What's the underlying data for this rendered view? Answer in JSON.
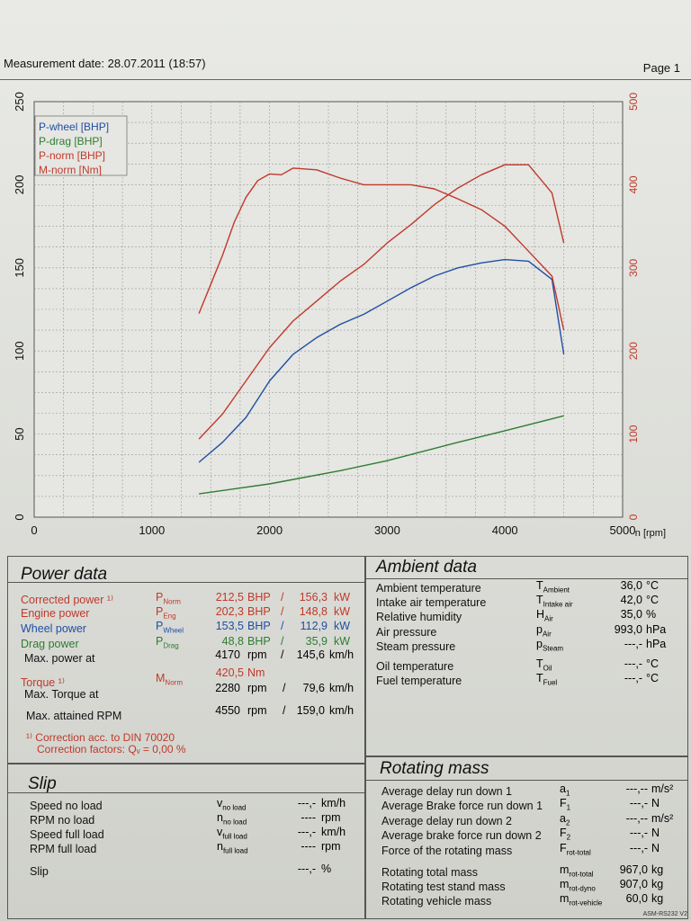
{
  "header": {
    "date": "Measurement date: 28.07.2011 (18:57)",
    "page": "Page 1"
  },
  "chart_data": {
    "type": "line",
    "xlabel": "n [rpm]",
    "xlim": [
      0,
      5000
    ],
    "x_ticks": [
      "0",
      "1000",
      "2000",
      "3000",
      "4000",
      "5000"
    ],
    "ylim_left": [
      0,
      250
    ],
    "y_left_ticks": [
      "0",
      "50",
      "100",
      "150",
      "200",
      "250"
    ],
    "ylim_right": [
      0,
      500
    ],
    "y_right_ticks": [
      "0",
      "100",
      "200",
      "300",
      "400",
      "500"
    ],
    "grid": true,
    "legend_position": "top-left",
    "series": [
      {
        "name": "P-wheel [BHP]",
        "color": "#1f4fa3",
        "axis": "left",
        "x": [
          1400,
          1600,
          1800,
          2000,
          2200,
          2400,
          2600,
          2800,
          3000,
          3200,
          3400,
          3600,
          3800,
          4000,
          4200,
          4400,
          4500
        ],
        "y": [
          33,
          45,
          60,
          82,
          98,
          108,
          116,
          122,
          130,
          138,
          145,
          150,
          153,
          155,
          154,
          143,
          98
        ]
      },
      {
        "name": "P-drag [BHP]",
        "color": "#2e7d32",
        "axis": "left",
        "x": [
          1400,
          2000,
          2600,
          3000,
          3600,
          4000,
          4500
        ],
        "y": [
          14,
          20,
          28,
          34,
          45,
          52,
          61
        ]
      },
      {
        "name": "P-norm [BHP]",
        "color": "#c0392b",
        "axis": "left",
        "x": [
          1400,
          1600,
          1800,
          2000,
          2200,
          2400,
          2600,
          2800,
          3000,
          3200,
          3400,
          3600,
          3800,
          4000,
          4200,
          4400,
          4500
        ],
        "y": [
          47,
          62,
          82,
          102,
          118,
          130,
          142,
          152,
          165,
          176,
          188,
          198,
          206,
          212,
          212,
          195,
          165
        ]
      },
      {
        "name": "M-norm [Nm]",
        "color": "#c0392b",
        "axis": "right",
        "x": [
          1400,
          1500,
          1600,
          1700,
          1800,
          1900,
          2000,
          2100,
          2200,
          2400,
          2600,
          2800,
          3000,
          3200,
          3400,
          3600,
          3800,
          4000,
          4200,
          4400,
          4500
        ],
        "y": [
          245,
          280,
          315,
          355,
          385,
          405,
          413,
          412,
          420,
          418,
          408,
          400,
          400,
          400,
          395,
          383,
          370,
          350,
          320,
          290,
          225
        ]
      }
    ]
  },
  "power_data": {
    "title": "Power data",
    "corrected_label": "Corrected power ¹⁾",
    "corrected_sym": "P",
    "corrected_sub": "Norm",
    "corrected_bhp": "212,5",
    "corrected_kw": "156,3",
    "engine_label": "Engine power",
    "engine_sym": "P",
    "engine_sub": "Eng",
    "engine_bhp": "202,3",
    "engine_kw": "148,8",
    "wheel_label": "Wheel power",
    "wheel_sym": "P",
    "wheel_sub": "Wheel",
    "wheel_bhp": "153,5",
    "wheel_kw": "112,9",
    "drag_label": "Drag power",
    "drag_sym": "P",
    "drag_sub": "Drag",
    "drag_bhp": "48,8",
    "drag_kw": "35,9",
    "maxpower_label": "Max. power at",
    "maxpower_rpm": "4170",
    "maxpower_kmh": "145,6",
    "torque_label": "Torque ¹⁾",
    "torque_sym": "M",
    "torque_sub": "Norm",
    "torque_nm": "420,5",
    "maxtorque_label": "Max. Torque at",
    "maxtorque_rpm": "2280",
    "maxtorque_kmh": "79,6",
    "maxrpm_label": "Max. attained RPM",
    "maxrpm_rpm": "4550",
    "maxrpm_kmh": "159,0",
    "u_bhp": "BHP",
    "u_slash": "/",
    "u_kw": "kW",
    "u_rpm": "rpm",
    "u_kmh": "km/h",
    "u_nm": "Nm",
    "note1": "¹⁾ Correction acc. to DIN 70020",
    "note2": "Correction factors: Qᵥ =   0,00 %"
  },
  "ambient": {
    "title": "Ambient data",
    "rows": [
      {
        "label": "Ambient temperature",
        "sym": "T",
        "sub": "Ambient",
        "val": "36,0",
        "unit": "°C"
      },
      {
        "label": "Intake air temperature",
        "sym": "T",
        "sub": "Intake air",
        "val": "42,0",
        "unit": "°C"
      },
      {
        "label": "Relative humidity",
        "sym": "H",
        "sub": "Air",
        "val": "35,0",
        "unit": "%"
      },
      {
        "label": "Air pressure",
        "sym": "p",
        "sub": "Air",
        "val": "993,0",
        "unit": "hPa"
      },
      {
        "label": "Steam pressure",
        "sym": "p",
        "sub": "Steam",
        "val": "---,-",
        "unit": "hPa"
      },
      {
        "label": "Oil temperature",
        "sym": "T",
        "sub": "Oil",
        "val": "---,-",
        "unit": "°C"
      },
      {
        "label": "Fuel temperature",
        "sym": "T",
        "sub": "Fuel",
        "val": "---,-",
        "unit": "°C"
      }
    ]
  },
  "slip": {
    "title": "Slip",
    "rows": [
      {
        "label": "Speed no load",
        "sym": "v",
        "sub": "no load",
        "val": "---,-",
        "unit": "km/h"
      },
      {
        "label": "RPM no load",
        "sym": "n",
        "sub": "no load",
        "val": "----",
        "unit": "rpm"
      },
      {
        "label": "Speed full load",
        "sym": "v",
        "sub": "full load",
        "val": "---,-",
        "unit": "km/h"
      },
      {
        "label": "RPM full load",
        "sym": "n",
        "sub": "full load",
        "val": "----",
        "unit": "rpm"
      },
      {
        "label": "Slip",
        "sym": "",
        "sub": "",
        "val": "---,-",
        "unit": "%"
      }
    ]
  },
  "rotating": {
    "title": "Rotating mass",
    "rows": [
      {
        "label": "Average delay run down 1",
        "sym": "a",
        "sub": "1",
        "val": "---,--",
        "unit": "m/s²"
      },
      {
        "label": "Average Brake force run down 1",
        "sym": "F",
        "sub": "1",
        "val": "---,-",
        "unit": "N"
      },
      {
        "label": "Average delay run down 2",
        "sym": "a",
        "sub": "2",
        "val": "---,--",
        "unit": "m/s²"
      },
      {
        "label": "Average brake force run down 2",
        "sym": "F",
        "sub": "2",
        "val": "---,-",
        "unit": "N"
      },
      {
        "label": "Force of the rotating mass",
        "sym": "F",
        "sub": "rot-total",
        "val": "---,-",
        "unit": "N"
      },
      {
        "label": "Rotating total mass",
        "sym": "m",
        "sub": "rot-total",
        "val": "967,0",
        "unit": "kg"
      },
      {
        "label": "Rotating test stand mass",
        "sym": "m",
        "sub": "rot-dyno",
        "val": "907,0",
        "unit": "kg"
      },
      {
        "label": "Rotating vehicle mass",
        "sym": "m",
        "sub": "rot-vehicle",
        "val": "60,0",
        "unit": "kg"
      }
    ]
  },
  "footer": "ASM-RS232 V2"
}
